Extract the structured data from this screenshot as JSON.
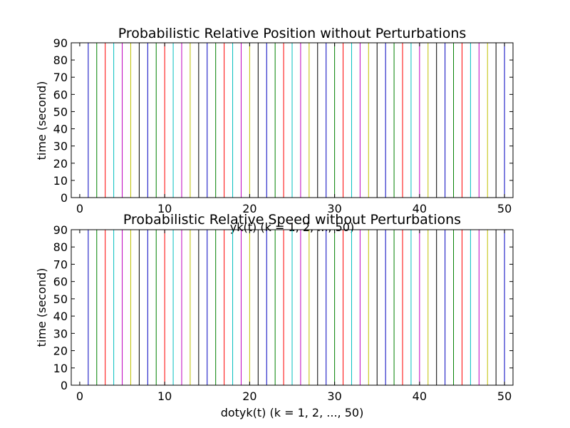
{
  "chart_data": [
    {
      "type": "line",
      "title": "Probabilistic Relative Position without Perturbations",
      "xlabel": "yk(t) (k = 1, 2, ..., 50)",
      "ylabel": "time (second)",
      "xlim": [
        -1,
        51
      ],
      "ylim": [
        0,
        90
      ],
      "xticks": [
        "0",
        "10",
        "20",
        "30",
        "40",
        "50"
      ],
      "yticks": [
        "0",
        "10",
        "20",
        "30",
        "40",
        "50",
        "60",
        "70",
        "80",
        "90"
      ],
      "series_note": "50 vertical series, each constant at x = k for t from 0 to 90",
      "x": [
        1,
        2,
        3,
        4,
        5,
        6,
        7,
        8,
        9,
        10,
        11,
        12,
        13,
        14,
        15,
        16,
        17,
        18,
        19,
        20,
        21,
        22,
        23,
        24,
        25,
        26,
        27,
        28,
        29,
        30,
        31,
        32,
        33,
        34,
        35,
        36,
        37,
        38,
        39,
        40,
        41,
        42,
        43,
        44,
        45,
        46,
        47,
        48,
        49,
        50
      ],
      "y_range": [
        0,
        90
      ],
      "grid": false,
      "legend": "none"
    },
    {
      "type": "line",
      "title": "Probabilistic Relative Speed without Perturbations",
      "xlabel": "dotyk(t) (k = 1, 2, ..., 50)",
      "ylabel": "time (second)",
      "xlim": [
        -1,
        51
      ],
      "ylim": [
        0,
        90
      ],
      "xticks": [
        "0",
        "10",
        "20",
        "30",
        "40",
        "50"
      ],
      "yticks": [
        "0",
        "10",
        "20",
        "30",
        "40",
        "50",
        "60",
        "70",
        "80",
        "90"
      ],
      "x": [
        1,
        2,
        3,
        4,
        5,
        6,
        7,
        8,
        9,
        10,
        11,
        12,
        13,
        14,
        15,
        16,
        17,
        18,
        19,
        20,
        21,
        22,
        23,
        24,
        25,
        26,
        27,
        28,
        29,
        30,
        31,
        32,
        33,
        34,
        35,
        36,
        37,
        38,
        39,
        40,
        41,
        42,
        43,
        44,
        45,
        46,
        47,
        48,
        49,
        50
      ],
      "y_range": [
        0,
        90
      ],
      "grid": false,
      "legend": "none"
    }
  ],
  "colors": [
    "#0000bf",
    "#008000",
    "#ff0000",
    "#00bfbf",
    "#bf00bf",
    "#bfbf00",
    "#000000"
  ]
}
